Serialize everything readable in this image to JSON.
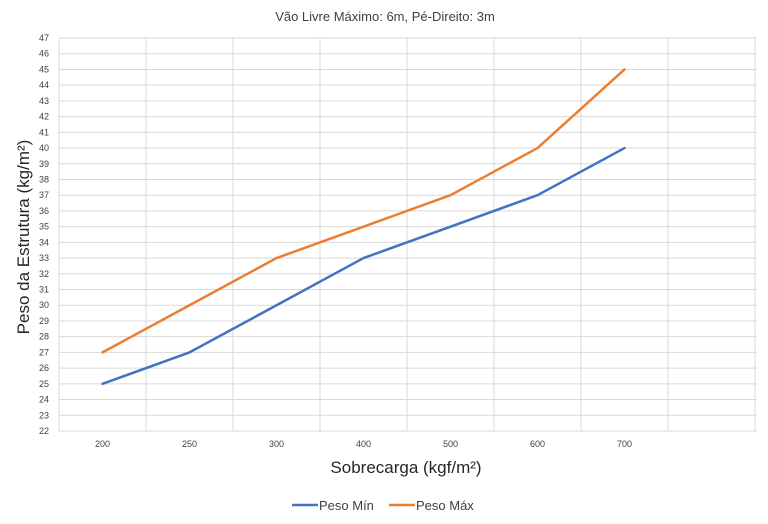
{
  "chart_data": {
    "type": "line",
    "title": "Vão Livre Máximo: 6m, Pé-Direito: 3m",
    "xlabel": "Sobrecarga (kgf/m²)",
    "ylabel": "Peso da Estrutura (kg/m²)",
    "categories": [
      "200",
      "250",
      "300",
      "400",
      "500",
      "600",
      "700"
    ],
    "ylim": [
      22,
      47
    ],
    "yticks": [
      22,
      23,
      24,
      25,
      26,
      27,
      28,
      29,
      30,
      31,
      32,
      33,
      34,
      35,
      36,
      37,
      38,
      39,
      40,
      41,
      42,
      43,
      44,
      45,
      46,
      47
    ],
    "grid": true,
    "legend": "bottom",
    "series": [
      {
        "name": "Peso Mín",
        "color": "#4472C4",
        "values": [
          25,
          27,
          30,
          33,
          35,
          37,
          40
        ]
      },
      {
        "name": "Peso Máx",
        "color": "#ED7D31",
        "values": [
          27,
          30,
          33,
          35,
          37,
          40,
          45
        ]
      }
    ]
  }
}
